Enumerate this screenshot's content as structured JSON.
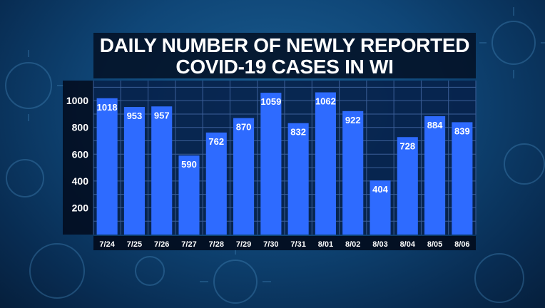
{
  "chart_data": {
    "type": "bar",
    "title_lines": [
      "DAILY NUMBER OF NEWLY REPORTED",
      "COVID-19 CASES IN WI"
    ],
    "categories": [
      "7/24",
      "7/25",
      "7/26",
      "7/27",
      "7/28",
      "7/29",
      "7/30",
      "7/31",
      "8/01",
      "8/02",
      "8/03",
      "8/04",
      "8/05",
      "8/06"
    ],
    "values": [
      1018,
      953,
      957,
      590,
      762,
      870,
      1059,
      832,
      1062,
      922,
      404,
      728,
      884,
      839
    ],
    "y_ticks": [
      200,
      400,
      600,
      800,
      1000
    ],
    "ylim": [
      0,
      1150
    ],
    "grid": true,
    "colors": {
      "bar": "#2e6bff",
      "plot_background": "#07214a",
      "grid": "#3b5f99",
      "text": "#ffffff",
      "label_background": "#020b1c"
    }
  }
}
